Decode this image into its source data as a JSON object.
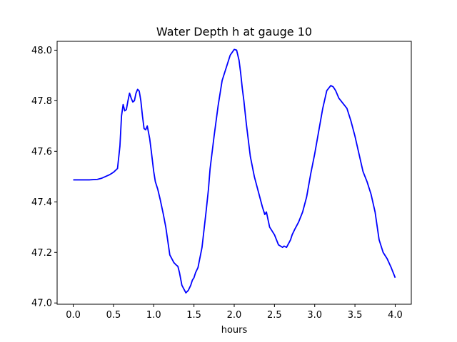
{
  "chart_data": {
    "type": "line",
    "title": "Water Depth h at gauge 10",
    "xlabel": "hours",
    "ylabel": "",
    "xlim": [
      -0.2,
      4.2
    ],
    "ylim": [
      46.995,
      48.035
    ],
    "xticks": [
      0.0,
      0.5,
      1.0,
      1.5,
      2.0,
      2.5,
      3.0,
      3.5,
      4.0
    ],
    "xtick_labels": [
      "0.0",
      "0.5",
      "1.0",
      "1.5",
      "2.0",
      "2.5",
      "3.0",
      "3.5",
      "4.0"
    ],
    "yticks": [
      47.0,
      47.2,
      47.4,
      47.6,
      47.8,
      48.0
    ],
    "ytick_labels": [
      "47.0",
      "47.2",
      "47.4",
      "47.6",
      "47.8",
      "48.0"
    ],
    "grid": false,
    "colors": {
      "line": "#0000ff",
      "axes": "#000000"
    },
    "series": [
      {
        "x": [
          0.0,
          0.1,
          0.2,
          0.3,
          0.35,
          0.4,
          0.45,
          0.5,
          0.55,
          0.58,
          0.6,
          0.62,
          0.64,
          0.66,
          0.68,
          0.7,
          0.72,
          0.74,
          0.76,
          0.78,
          0.8,
          0.82,
          0.84,
          0.86,
          0.88,
          0.9,
          0.92,
          0.95,
          0.97,
          1.0,
          1.02,
          1.05,
          1.08,
          1.1,
          1.12,
          1.15,
          1.2,
          1.25,
          1.28,
          1.3,
          1.32,
          1.35,
          1.4,
          1.43,
          1.46,
          1.48,
          1.5,
          1.52,
          1.55,
          1.6,
          1.65,
          1.68,
          1.7,
          1.75,
          1.8,
          1.85,
          1.9,
          1.95,
          2.0,
          2.03,
          2.06,
          2.08,
          2.1,
          2.12,
          2.15,
          2.2,
          2.25,
          2.3,
          2.35,
          2.38,
          2.4,
          2.42,
          2.44,
          2.46,
          2.5,
          2.55,
          2.6,
          2.62,
          2.65,
          2.7,
          2.72,
          2.75,
          2.8,
          2.85,
          2.9,
          2.95,
          3.0,
          3.05,
          3.1,
          3.15,
          3.2,
          3.23,
          3.26,
          3.3,
          3.35,
          3.4,
          3.45,
          3.5,
          3.55,
          3.6,
          3.65,
          3.7,
          3.75,
          3.8,
          3.85,
          3.9,
          3.95,
          4.0
        ],
        "y": [
          47.487,
          47.487,
          47.487,
          47.489,
          47.493,
          47.5,
          47.507,
          47.517,
          47.532,
          47.62,
          47.74,
          47.785,
          47.76,
          47.765,
          47.8,
          47.83,
          47.81,
          47.795,
          47.8,
          47.83,
          47.845,
          47.838,
          47.8,
          47.74,
          47.69,
          47.685,
          47.7,
          47.65,
          47.6,
          47.52,
          47.48,
          47.45,
          47.41,
          47.38,
          47.35,
          47.3,
          47.19,
          47.16,
          47.15,
          47.145,
          47.12,
          47.07,
          47.04,
          47.05,
          47.07,
          47.09,
          47.1,
          47.12,
          47.14,
          47.22,
          47.36,
          47.45,
          47.53,
          47.66,
          47.78,
          47.88,
          47.93,
          47.98,
          48.003,
          48.0,
          47.96,
          47.91,
          47.85,
          47.8,
          47.71,
          47.58,
          47.5,
          47.44,
          47.38,
          47.35,
          47.36,
          47.33,
          47.3,
          47.29,
          47.27,
          47.23,
          47.22,
          47.225,
          47.22,
          47.25,
          47.27,
          47.29,
          47.32,
          47.36,
          47.42,
          47.51,
          47.59,
          47.68,
          47.77,
          47.84,
          47.86,
          47.855,
          47.84,
          47.81,
          47.79,
          47.77,
          47.72,
          47.66,
          47.59,
          47.52,
          47.48,
          47.43,
          47.36,
          47.25,
          47.2,
          47.175,
          47.14,
          47.1
        ]
      }
    ]
  }
}
